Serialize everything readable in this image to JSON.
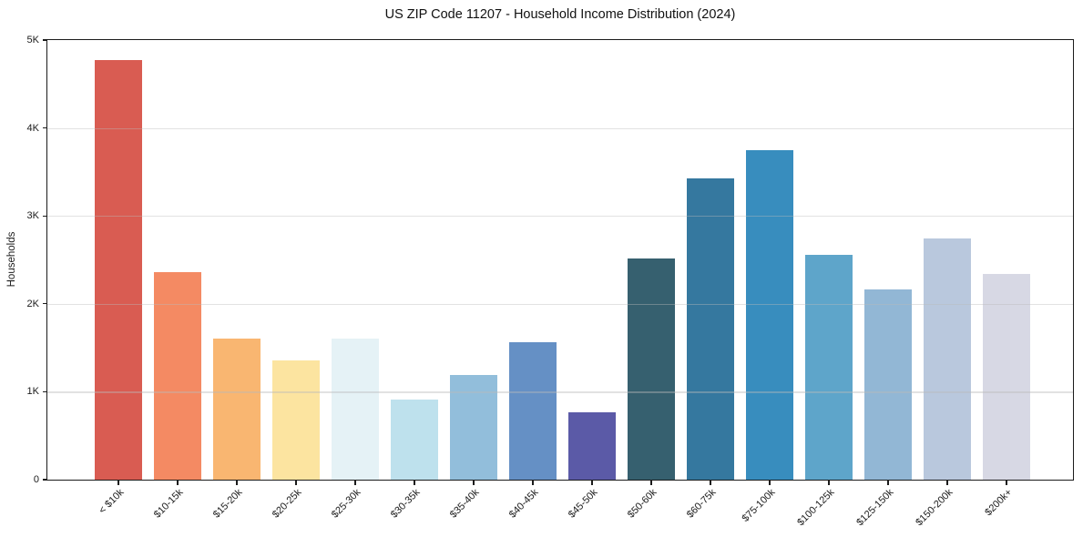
{
  "figure": {
    "title": "US ZIP Code 11207 - Household Income Distribution (2024)"
  },
  "chart_data": {
    "type": "bar",
    "title": "US ZIP Code 11207 - Household Income Distribution (2024)",
    "xlabel": "",
    "ylabel": "Households",
    "categories": [
      "< $10k",
      "$10-15k",
      "$15-20k",
      "$20-25k",
      "$25-30k",
      "$30-35k",
      "$35-40k",
      "$40-45k",
      "$45-50k",
      "$50-60k",
      "$60-75k",
      "$75-100k",
      "$100-125k",
      "$125-150k",
      "$150-200k",
      "$200k+"
    ],
    "values": [
      4770,
      2360,
      1610,
      1360,
      1610,
      910,
      1190,
      1560,
      770,
      2520,
      3430,
      3750,
      2560,
      2160,
      2740,
      2340
    ],
    "bar_colors": [
      "#d95c52",
      "#f48a63",
      "#f9b671",
      "#fce4a0",
      "#e5f2f6",
      "#bee1ed",
      "#92bedb",
      "#6590c5",
      "#5b5aa7",
      "#36606f",
      "#35789f",
      "#388dbe",
      "#5ea5ca",
      "#92b7d5",
      "#b9c8dd",
      "#d7d8e4"
    ],
    "ylim": [
      0,
      5000
    ],
    "yticks": [
      {
        "value": 0,
        "label": "0"
      },
      {
        "value": 1000,
        "label": "1K"
      },
      {
        "value": 2000,
        "label": "2K"
      },
      {
        "value": 3000,
        "label": "3K"
      },
      {
        "value": 4000,
        "label": "4K"
      },
      {
        "value": 5000,
        "label": "5K"
      }
    ],
    "grid": "horizontal-light",
    "legend": "none"
  }
}
